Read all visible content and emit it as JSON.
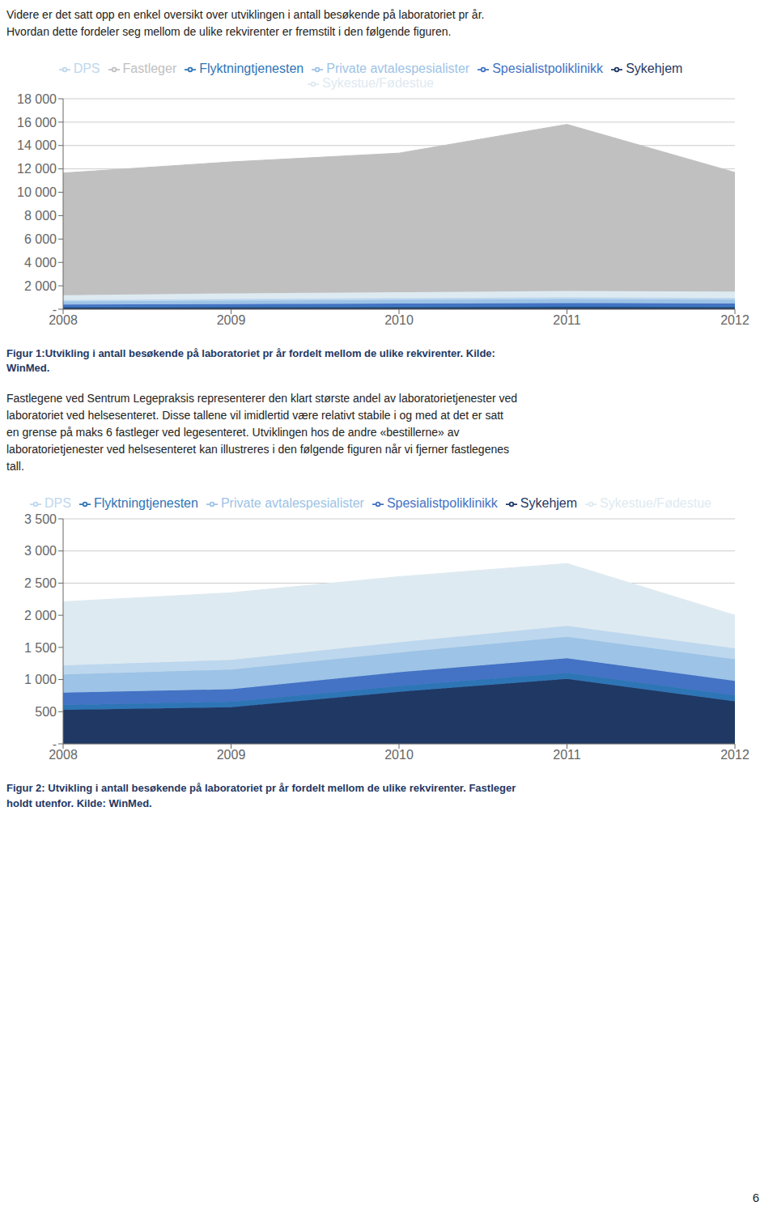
{
  "chart_data": [
    {
      "type": "area",
      "stacked": true,
      "grid": true,
      "legend": "top",
      "title": "Figur 1:Utvikling i antall besøkende på laboratoriet pr år fordelt mellom de ulike rekvirenter. Kilde:\nWinMed.",
      "x": [
        2008,
        2009,
        2010,
        2011,
        2012
      ],
      "xlim": [
        2008,
        2012
      ],
      "xticks": [
        2008,
        2009,
        2010,
        2011,
        2012
      ],
      "ylim": [
        0,
        18000
      ],
      "yticks": [
        {
          "value": 0,
          "label": "-"
        },
        {
          "value": 2000,
          "label": "2 000"
        },
        {
          "value": 4000,
          "label": "4 000"
        },
        {
          "value": 6000,
          "label": "6 000"
        },
        {
          "value": 8000,
          "label": "8 000"
        },
        {
          "value": 10000,
          "label": "10 000"
        },
        {
          "value": 12000,
          "label": "12 000"
        },
        {
          "value": 14000,
          "label": "14 000"
        },
        {
          "value": 16000,
          "label": "16 000"
        },
        {
          "value": 18000,
          "label": "18 000"
        }
      ],
      "series": [
        {
          "name": "Sykehjem",
          "color": "#1F3864",
          "values": [
            130,
            150,
            160,
            170,
            160
          ]
        },
        {
          "name": "Flyktningtjenesten",
          "color": "#2E75B6",
          "values": [
            80,
            90,
            100,
            110,
            100
          ]
        },
        {
          "name": "Spesialistpoliklinikk",
          "color": "#4472C4",
          "values": [
            180,
            200,
            220,
            240,
            230
          ]
        },
        {
          "name": "Private avtalespesialister",
          "color": "#9DC3E6",
          "values": [
            260,
            290,
            310,
            340,
            320
          ]
        },
        {
          "name": "DPS",
          "color": "#BDD7EE",
          "values": [
            130,
            145,
            155,
            165,
            160
          ]
        },
        {
          "name": "Sykestue/Fødestue",
          "color": "#DEEAF1",
          "values": [
            420,
            475,
            505,
            535,
            530
          ]
        },
        {
          "name": "Fastleger",
          "color": "#C0C0C0",
          "values": [
            10450,
            11250,
            11900,
            14250,
            10200
          ]
        }
      ]
    },
    {
      "type": "area",
      "stacked": true,
      "grid": true,
      "legend": "top",
      "title": "Figur 2: Utvikling i antall besøkende på laboratoriet pr år fordelt mellom de ulike rekvirenter. Fastleger\nholdt utenfor. Kilde: WinMed.",
      "x": [
        2008,
        2009,
        2010,
        2011,
        2012
      ],
      "xlim": [
        2008,
        2012
      ],
      "xticks": [
        2008,
        2009,
        2010,
        2011,
        2012
      ],
      "ylim": [
        0,
        3500
      ],
      "yticks": [
        {
          "value": 0,
          "label": "-"
        },
        500,
        {
          "value": 1000,
          "label": "1 000"
        },
        {
          "value": 1500,
          "label": "1 500"
        },
        {
          "value": 2000,
          "label": "2 000"
        },
        {
          "value": 2500,
          "label": "2 500"
        },
        {
          "value": 3000,
          "label": "3 000"
        },
        {
          "value": 3500,
          "label": "3 500"
        }
      ],
      "series": [
        {
          "name": "Sykehjem",
          "color": "#1F3864",
          "values": [
            530,
            570,
            810,
            1010,
            660
          ]
        },
        {
          "name": "Flyktningtjenesten",
          "color": "#2E75B6",
          "values": [
            75,
            85,
            90,
            95,
            95
          ]
        },
        {
          "name": "Spesialistpoliklinikk",
          "color": "#4472C4",
          "values": [
            190,
            195,
            215,
            225,
            225
          ]
        },
        {
          "name": "Private avtalespesialister",
          "color": "#9DC3E6",
          "values": [
            285,
            305,
            305,
            335,
            335
          ]
        },
        {
          "name": "DPS",
          "color": "#BDD7EE",
          "values": [
            140,
            150,
            160,
            170,
            170
          ]
        },
        {
          "name": "Sykestue/Fødestue",
          "color": "#DEEAF1",
          "values": [
            990,
            1045,
            1020,
            970,
            515
          ]
        }
      ]
    }
  ],
  "annotations": [
    "Videre er det satt opp en enkel oversikt over utviklingen i antall besøkende på laboratoriet pr år.\nHvordan dette fordeler seg mellom de ulike rekvirenter er fremstilt i den følgende figuren.",
    "Fastlegene ved Sentrum Legepraksis representerer den klart største andel av laboratorietjenester ved\nlaboratoriet ved helsesenteret. Disse tallene vil imidlertid være relativt stabile i og med at det er satt\nen grense på maks 6 fastleger ved legesenteret. Utviklingen hos de andre «bestillerne» av\nlaboratorietjenester ved helsesenteret kan illustreres i den følgende figuren når vi fjerner fastlegenes\ntall.",
    "6"
  ]
}
